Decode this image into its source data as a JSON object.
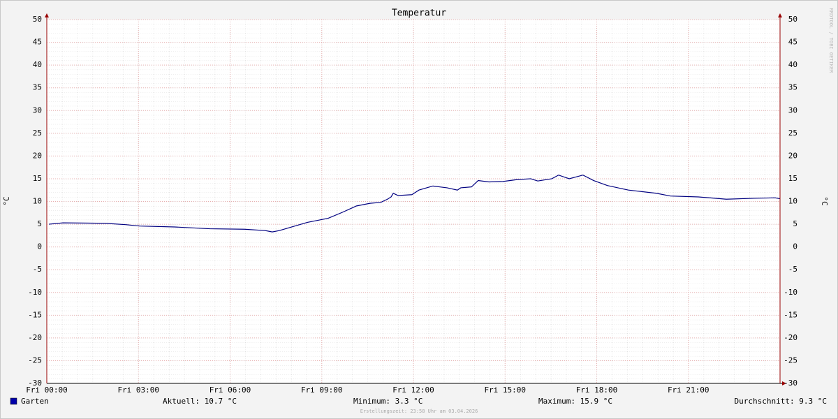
{
  "chart_data": {
    "type": "line",
    "title": "Temperatur",
    "y_label": "°C",
    "y2_label": "°C",
    "watermark": "RRDTOOL / TOBI OETIKER",
    "footer": "Erstellungszeit: 23:58 Uhr am 03.04.2026",
    "legend_stats": [
      "Aktuell: 10.7 °C",
      "Minimum: 3.3 °C",
      "Maximum: 15.9 °C",
      "Durchschnitt: 9.3 °C"
    ],
    "x": [
      0.07,
      0.53,
      1.9,
      2.58,
      3.04,
      4.18,
      5.33,
      6.47,
      7.15,
      7.38,
      7.61,
      8.07,
      8.53,
      9.21,
      9.67,
      10.13,
      10.58,
      10.93,
      11.15,
      11.27,
      11.34,
      11.5,
      11.95,
      12.18,
      12.64,
      13.1,
      13.44,
      13.55,
      13.9,
      14.12,
      14.47,
      14.93,
      15.38,
      15.84,
      16.07,
      16.53,
      16.75,
      17.1,
      17.55,
      17.9,
      18.35,
      19.04,
      19.95,
      20.41,
      21.33,
      22.24,
      23.15,
      23.84,
      24.0
    ],
    "series": [
      {
        "name": "Garten",
        "color": "#000080",
        "values": [
          5.0,
          5.3,
          5.2,
          4.9,
          4.6,
          4.4,
          4.0,
          3.9,
          3.6,
          3.3,
          3.6,
          4.5,
          5.4,
          6.3,
          7.6,
          9.0,
          9.6,
          9.8,
          10.5,
          11.0,
          11.8,
          11.3,
          11.5,
          12.5,
          13.4,
          13.0,
          12.5,
          13.0,
          13.2,
          14.6,
          14.3,
          14.4,
          14.8,
          15.0,
          14.5,
          15.0,
          15.8,
          15.0,
          15.8,
          14.6,
          13.5,
          12.5,
          11.8,
          11.2,
          11.0,
          10.5,
          10.7,
          10.8,
          10.6
        ]
      }
    ],
    "xlim": [
      0,
      24
    ],
    "xticks": [
      {
        "value": 0,
        "label": "Fri 00:00"
      },
      {
        "value": 3,
        "label": "Fri 03:00"
      },
      {
        "value": 6,
        "label": "Fri 06:00"
      },
      {
        "value": 9,
        "label": "Fri 09:00"
      },
      {
        "value": 12,
        "label": "Fri 12:00"
      },
      {
        "value": 15,
        "label": "Fri 15:00"
      },
      {
        "value": 18,
        "label": "Fri 18:00"
      },
      {
        "value": 21,
        "label": "Fri 21:00"
      }
    ],
    "ylim": [
      -30,
      50
    ],
    "yticks": [
      -30,
      -25,
      -20,
      -15,
      -10,
      -5,
      0,
      5,
      10,
      15,
      20,
      25,
      30,
      35,
      40,
      45,
      50
    ],
    "grid": true
  }
}
